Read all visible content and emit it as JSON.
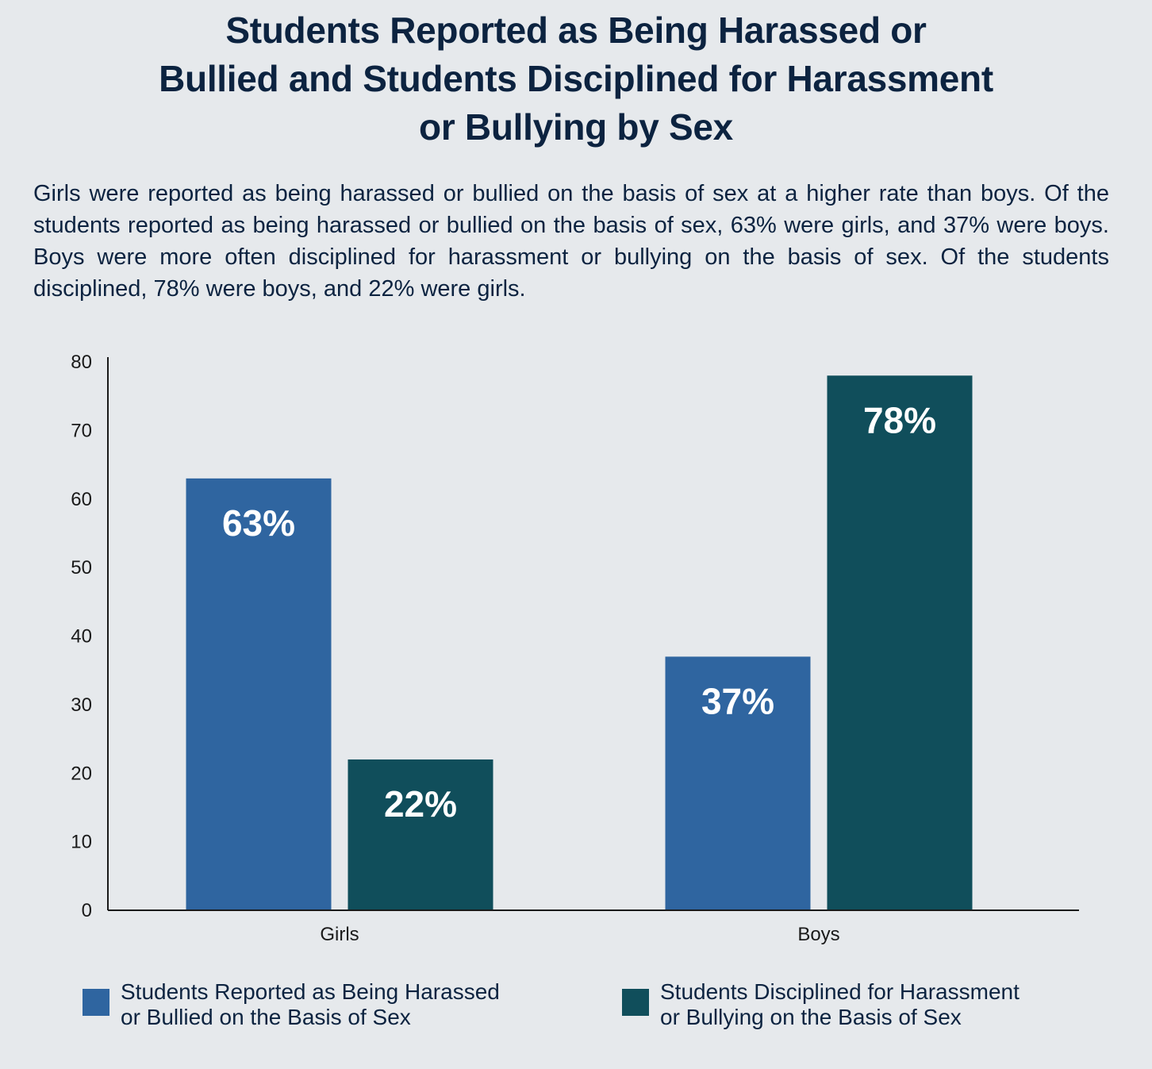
{
  "title_lines": [
    "Students Reported as Being Harassed or",
    "Bullied and Students Disciplined for Harassment",
    "or Bullying by Sex"
  ],
  "description": "Girls were reported as being harassed or bullied on the basis of sex at a higher rate than boys. Of the students reported as being harassed or bullied on the basis of sex, 63% were girls, and 37% were boys. Boys were more often disciplined for harassment or bullying on the basis of sex. Of the students disciplined, 78% were boys, and 22% were girls.",
  "legend": [
    {
      "line1": "Students Reported as Being Harassed",
      "line2": "or Bullied on the Basis of Sex",
      "color": "#2f65a0"
    },
    {
      "line1": "Students Disciplined for Harassment",
      "line2": "or Bullying on the Basis of Sex",
      "color": "#104e5b"
    }
  ],
  "chart_data": {
    "type": "bar",
    "title": "Students Reported as Being Harassed or Bullied and Students Disciplined for Harassment or Bullying by Sex",
    "categories": [
      "Girls",
      "Boys"
    ],
    "series": [
      {
        "name": "Students Reported as Being Harassed or Bullied on the Basis of Sex",
        "values": [
          63,
          37
        ],
        "labels": [
          "63%",
          "37%"
        ],
        "color": "#2f65a0"
      },
      {
        "name": "Students Disciplined for Harassment or Bullying on the Basis of Sex",
        "values": [
          22,
          78
        ],
        "labels": [
          "22%",
          "78%"
        ],
        "color": "#104e5b"
      }
    ],
    "yticks": [
      "0",
      "10",
      "20",
      "30",
      "40",
      "50",
      "60",
      "70",
      "80"
    ],
    "ylim": [
      0,
      80
    ],
    "xlabel": "",
    "ylabel": "",
    "grid": false,
    "legend_position": "bottom"
  }
}
